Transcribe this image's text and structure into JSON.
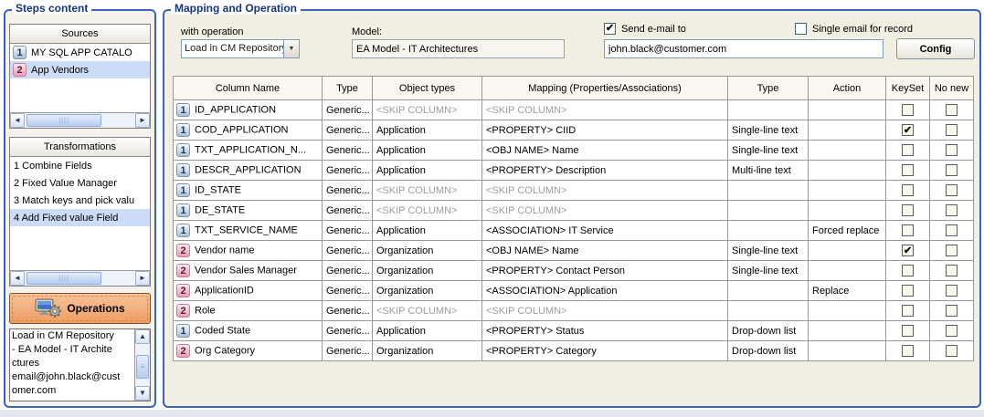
{
  "steps_panel": {
    "title": "Steps content",
    "sources": {
      "header": "Sources",
      "items": [
        {
          "num": "1",
          "badge": "blue",
          "label": "MY SQL APP CATALO",
          "selected": false
        },
        {
          "num": "2",
          "badge": "pink",
          "label": "App Vendors",
          "selected": true
        }
      ]
    },
    "transformations": {
      "header": "Transformations",
      "items": [
        {
          "label": "1 Combine Fields",
          "selected": false
        },
        {
          "label": "2 Fixed Value Manager",
          "selected": false
        },
        {
          "label": "3 Match keys and pick valu",
          "selected": false
        },
        {
          "label": "4 Add Fixed value Field",
          "selected": true
        }
      ]
    },
    "operations": {
      "button_label": "Operations",
      "lines": [
        "Load in CM Repository",
        "- EA Model - IT Archite",
        "ctures",
        "email@john.black@cust",
        "omer.com"
      ]
    }
  },
  "mapping_panel": {
    "title": "Mapping and Operation",
    "with_operation_label": "with operation",
    "with_operation_value": "Load in CM Repository",
    "model_label": "Model:",
    "model_value": "EA Model - IT Architectures",
    "send_email_label": "Send e-mail to",
    "send_email_checked": true,
    "single_email_label": "Single email for record",
    "single_email_checked": false,
    "email_value": "john.black@customer.com",
    "config_label": "Config",
    "table": {
      "headers": [
        "Column Name",
        "Type",
        "Object types",
        "Mapping (Properties/Associations)",
        "Type",
        "Action",
        "KeySet",
        "No new"
      ],
      "skip_text": "<SKIP COLUMN>",
      "rows": [
        {
          "n": "1",
          "badge": "blue",
          "name": "ID_APPLICATION",
          "type": "Generic...",
          "obj": "<SKIP COLUMN>",
          "map": "<SKIP COLUMN>",
          "mtype": "",
          "action": "",
          "keyset": false,
          "nonew": false
        },
        {
          "n": "1",
          "badge": "blue",
          "name": "COD_APPLICATION",
          "type": "Generic...",
          "obj": "Application",
          "map": "<PROPERTY> CIID",
          "mtype": "Single-line text",
          "action": "",
          "keyset": true,
          "nonew": false
        },
        {
          "n": "1",
          "badge": "blue",
          "name": "TXT_APPLICATION_N...",
          "type": "Generic...",
          "obj": "Application",
          "map": "<OBJ NAME> Name",
          "mtype": "Single-line text",
          "action": "",
          "keyset": false,
          "nonew": false
        },
        {
          "n": "1",
          "badge": "blue",
          "name": "DESCR_APPLICATION",
          "type": "Generic...",
          "obj": "Application",
          "map": "<PROPERTY> Description",
          "mtype": "Multi-line text",
          "action": "",
          "keyset": false,
          "nonew": false
        },
        {
          "n": "1",
          "badge": "blue",
          "name": "ID_STATE",
          "type": "Generic...",
          "obj": "<SKIP COLUMN>",
          "map": "<SKIP COLUMN>",
          "mtype": "",
          "action": "",
          "keyset": false,
          "nonew": false
        },
        {
          "n": "1",
          "badge": "blue",
          "name": "DE_STATE",
          "type": "Generic...",
          "obj": "<SKIP COLUMN>",
          "map": "<SKIP COLUMN>",
          "mtype": "",
          "action": "",
          "keyset": false,
          "nonew": false
        },
        {
          "n": "1",
          "badge": "blue",
          "name": "TXT_SERVICE_NAME",
          "type": "Generic...",
          "obj": "Application",
          "map": "<ASSOCIATION> IT Service",
          "mtype": "",
          "action": "Forced replace",
          "keyset": false,
          "nonew": false
        },
        {
          "n": "2",
          "badge": "pink",
          "name": "Vendor name",
          "type": "Generic...",
          "obj": "Organization",
          "map": "<OBJ NAME> Name",
          "mtype": "Single-line text",
          "action": "",
          "keyset": true,
          "nonew": false
        },
        {
          "n": "2",
          "badge": "pink",
          "name": "Vendor Sales Manager",
          "type": "Generic...",
          "obj": "Organization",
          "map": "<PROPERTY> Contact Person",
          "mtype": "Single-line text",
          "action": "",
          "keyset": false,
          "nonew": false
        },
        {
          "n": "2",
          "badge": "pink",
          "name": "ApplicationID",
          "type": "Generic...",
          "obj": "Organization",
          "map": "<ASSOCIATION> Application",
          "mtype": "",
          "action": "Replace",
          "keyset": false,
          "nonew": false
        },
        {
          "n": "2",
          "badge": "pink",
          "name": "Role",
          "type": "Generic...",
          "obj": "<SKIP COLUMN>",
          "map": "<SKIP COLUMN>",
          "mtype": "",
          "action": "",
          "keyset": false,
          "nonew": false
        },
        {
          "n": "1",
          "badge": "blue",
          "name": "Coded State",
          "type": "Generic...",
          "obj": "Application",
          "map": "<PROPERTY> Status",
          "mtype": "Drop-down list",
          "action": "",
          "keyset": false,
          "nonew": false
        },
        {
          "n": "2",
          "badge": "pink",
          "name": "Org Category",
          "type": "Generic...",
          "obj": "Organization",
          "map": "<PROPERTY> Category",
          "mtype": "Drop-down list",
          "action": "",
          "keyset": false,
          "nonew": false
        }
      ]
    }
  },
  "colors": {
    "panel_border": "#3c63bd",
    "title_blue": "#16367d",
    "selected_row": "#cddcf6",
    "operations_orange": "#ee9d62"
  }
}
